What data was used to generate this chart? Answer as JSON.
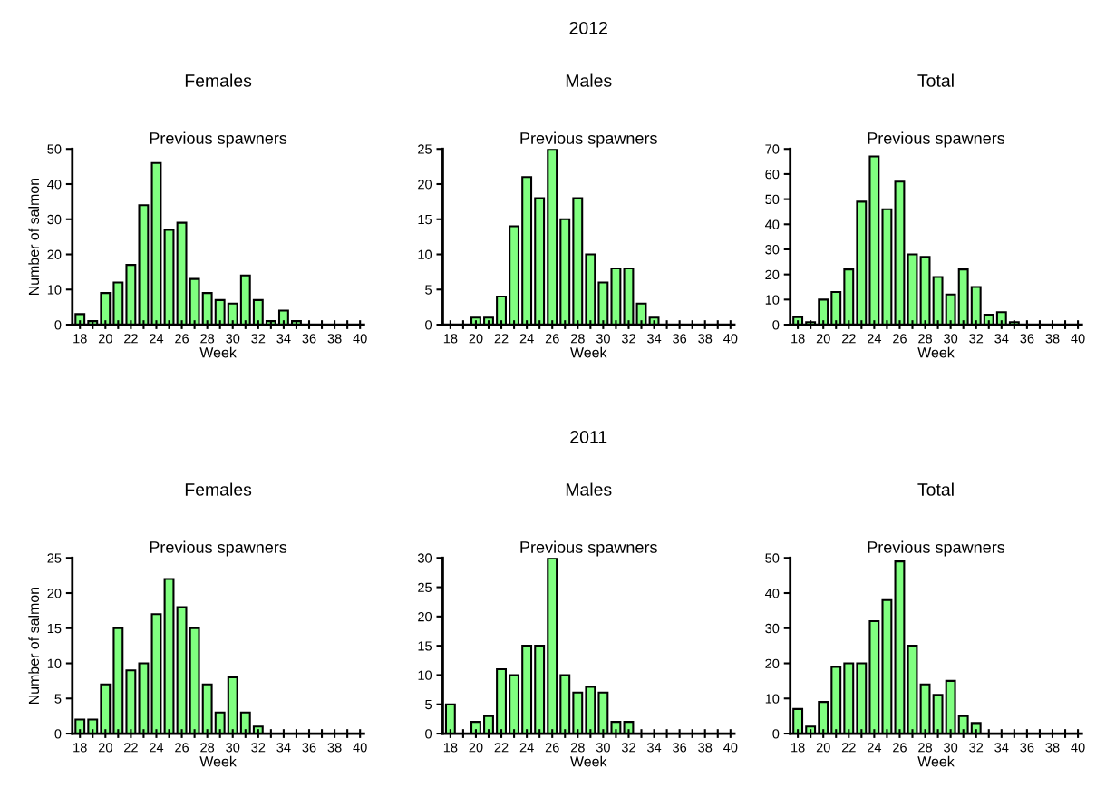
{
  "chart_data": [
    {
      "type": "bar",
      "title": "Females",
      "subtitle": "Previous spawners",
      "ylabel": "Number of salmon",
      "xlabel": "Week",
      "x": [
        18,
        19,
        20,
        21,
        22,
        23,
        24,
        25,
        26,
        27,
        28,
        29,
        30,
        31,
        32,
        33,
        34,
        35
      ],
      "values": [
        3,
        1,
        9,
        12,
        17,
        34,
        46,
        27,
        29,
        13,
        9,
        7,
        6,
        14,
        7,
        1,
        4,
        1
      ],
      "color": "#80ff80",
      "xlim": [
        17.4,
        40.3
      ],
      "ylim": [
        0,
        50
      ],
      "yticks": [
        0,
        10,
        20,
        30,
        40,
        50
      ],
      "xticks": [
        18,
        {
          "value": 19,
          "label": null
        },
        20,
        {
          "value": 21,
          "label": null
        },
        22,
        {
          "value": 23,
          "label": null
        },
        24,
        {
          "value": 25,
          "label": null
        },
        26,
        {
          "value": 27,
          "label": null
        },
        28,
        {
          "value": 29,
          "label": null
        },
        30,
        {
          "value": 31,
          "label": null
        },
        32,
        {
          "value": 33,
          "label": null
        },
        34,
        {
          "value": 35,
          "label": null
        },
        36,
        {
          "value": 37,
          "label": null
        },
        38,
        {
          "value": 39,
          "label": null
        },
        40
      ],
      "grid": false,
      "legend": false
    },
    {
      "type": "bar",
      "title": "Males",
      "subtitle": "Previous spawners",
      "annotations": [
        "2012"
      ],
      "xlabel": "Week",
      "x": [
        20,
        21,
        22,
        23,
        24,
        25,
        26,
        27,
        28,
        29,
        30,
        31,
        32,
        33,
        34
      ],
      "values": [
        1,
        1,
        4,
        14,
        21,
        18,
        25,
        15,
        18,
        10,
        6,
        8,
        8,
        3,
        1
      ],
      "color": "#80ff80",
      "xlim": [
        17.4,
        40.3
      ],
      "ylim": [
        0,
        25
      ],
      "yticks": [
        0,
        5,
        10,
        15,
        20,
        25
      ],
      "xticks": [
        18,
        {
          "value": 19,
          "label": null
        },
        20,
        {
          "value": 21,
          "label": null
        },
        22,
        {
          "value": 23,
          "label": null
        },
        24,
        {
          "value": 25,
          "label": null
        },
        26,
        {
          "value": 27,
          "label": null
        },
        28,
        {
          "value": 29,
          "label": null
        },
        30,
        {
          "value": 31,
          "label": null
        },
        32,
        {
          "value": 33,
          "label": null
        },
        34,
        {
          "value": 35,
          "label": null
        },
        36,
        {
          "value": 37,
          "label": null
        },
        38,
        {
          "value": 39,
          "label": null
        },
        40
      ],
      "grid": false,
      "legend": false
    },
    {
      "type": "bar",
      "title": "Total",
      "subtitle": "Previous spawners",
      "xlabel": "Week",
      "x": [
        18,
        19,
        20,
        21,
        22,
        23,
        24,
        25,
        26,
        27,
        28,
        29,
        30,
        31,
        32,
        33,
        34,
        35
      ],
      "values": [
        3,
        1,
        10,
        13,
        22,
        49,
        67,
        46,
        57,
        28,
        27,
        19,
        12,
        22,
        15,
        4,
        5,
        1
      ],
      "color": "#80ff80",
      "xlim": [
        17.4,
        40.3
      ],
      "ylim": [
        0,
        70
      ],
      "yticks": [
        0,
        10,
        20,
        30,
        40,
        50,
        60,
        70
      ],
      "xticks": [
        18,
        {
          "value": 19,
          "label": null
        },
        20,
        {
          "value": 21,
          "label": null
        },
        22,
        {
          "value": 23,
          "label": null
        },
        24,
        {
          "value": 25,
          "label": null
        },
        26,
        {
          "value": 27,
          "label": null
        },
        28,
        {
          "value": 29,
          "label": null
        },
        30,
        {
          "value": 31,
          "label": null
        },
        32,
        {
          "value": 33,
          "label": null
        },
        34,
        {
          "value": 35,
          "label": null
        },
        36,
        {
          "value": 37,
          "label": null
        },
        38,
        {
          "value": 39,
          "label": null
        },
        40
      ],
      "grid": false,
      "legend": false
    },
    {
      "type": "bar",
      "title": "Females",
      "subtitle": "Previous spawners",
      "ylabel": "Number of salmon",
      "xlabel": "Week",
      "x": [
        18,
        19,
        20,
        21,
        22,
        23,
        24,
        25,
        26,
        27,
        28,
        29,
        30,
        31,
        32
      ],
      "values": [
        2,
        2,
        7,
        15,
        9,
        10,
        17,
        22,
        18,
        15,
        7,
        3,
        8,
        3,
        1
      ],
      "color": "#80ff80",
      "xlim": [
        17.4,
        40.3
      ],
      "ylim": [
        0,
        25
      ],
      "yticks": [
        0,
        5,
        10,
        15,
        20,
        25
      ],
      "xticks": [
        18,
        {
          "value": 19,
          "label": null
        },
        20,
        {
          "value": 21,
          "label": null
        },
        22,
        {
          "value": 23,
          "label": null
        },
        24,
        {
          "value": 25,
          "label": null
        },
        26,
        {
          "value": 27,
          "label": null
        },
        28,
        {
          "value": 29,
          "label": null
        },
        30,
        {
          "value": 31,
          "label": null
        },
        32,
        {
          "value": 33,
          "label": null
        },
        34,
        {
          "value": 35,
          "label": null
        },
        36,
        {
          "value": 37,
          "label": null
        },
        38,
        {
          "value": 39,
          "label": null
        },
        40
      ],
      "grid": false,
      "legend": false
    },
    {
      "type": "bar",
      "title": "Males",
      "subtitle": "Previous spawners",
      "annotations": [
        "2011"
      ],
      "xlabel": "Week",
      "x": [
        18,
        20,
        21,
        22,
        23,
        24,
        25,
        26,
        27,
        28,
        29,
        30,
        31,
        32
      ],
      "values": [
        5,
        2,
        3,
        11,
        10,
        15,
        15,
        30,
        10,
        7,
        8,
        7,
        2,
        2
      ],
      "color": "#80ff80",
      "xlim": [
        17.4,
        40.3
      ],
      "ylim": [
        0,
        30
      ],
      "yticks": [
        0,
        5,
        10,
        15,
        20,
        25,
        30
      ],
      "xticks": [
        18,
        {
          "value": 19,
          "label": null
        },
        20,
        {
          "value": 21,
          "label": null
        },
        22,
        {
          "value": 23,
          "label": null
        },
        24,
        {
          "value": 25,
          "label": null
        },
        26,
        {
          "value": 27,
          "label": null
        },
        28,
        {
          "value": 29,
          "label": null
        },
        30,
        {
          "value": 31,
          "label": null
        },
        32,
        {
          "value": 33,
          "label": null
        },
        34,
        {
          "value": 35,
          "label": null
        },
        36,
        {
          "value": 37,
          "label": null
        },
        38,
        {
          "value": 39,
          "label": null
        },
        40
      ],
      "grid": false,
      "legend": false
    },
    {
      "type": "bar",
      "title": "Total",
      "subtitle": "Previous spawners",
      "xlabel": "Week",
      "x": [
        18,
        19,
        20,
        21,
        22,
        23,
        24,
        25,
        26,
        27,
        28,
        29,
        30,
        31,
        32
      ],
      "values": [
        7,
        2,
        9,
        19,
        20,
        20,
        32,
        38,
        49,
        25,
        14,
        11,
        15,
        5,
        3
      ],
      "color": "#80ff80",
      "xlim": [
        17.4,
        40.3
      ],
      "ylim": [
        0,
        50
      ],
      "yticks": [
        0,
        10,
        20,
        30,
        40,
        50
      ],
      "xticks": [
        18,
        {
          "value": 19,
          "label": null
        },
        20,
        {
          "value": 21,
          "label": null
        },
        22,
        {
          "value": 23,
          "label": null
        },
        24,
        {
          "value": 25,
          "label": null
        },
        26,
        {
          "value": 27,
          "label": null
        },
        28,
        {
          "value": 29,
          "label": null
        },
        30,
        {
          "value": 31,
          "label": null
        },
        32,
        {
          "value": 33,
          "label": null
        },
        34,
        {
          "value": 35,
          "label": null
        },
        36,
        {
          "value": 37,
          "label": null
        },
        38,
        {
          "value": 39,
          "label": null
        },
        40
      ],
      "grid": false,
      "legend": false
    }
  ]
}
